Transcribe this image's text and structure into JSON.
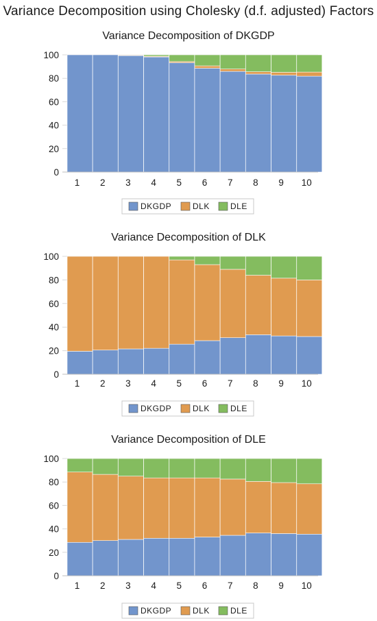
{
  "title": "Variance Decomposition using Cholesky (d.f. adjusted) Factors",
  "colors": {
    "DKGDP": "#7295cc",
    "DLK": "#e09b50",
    "DLE": "#84bc5f",
    "grid": "#d9d9d9",
    "axis": "#bfbfbf"
  },
  "chart_data": [
    {
      "type": "bar",
      "stacked": true,
      "title": "Variance Decomposition of DKGDP",
      "categories": [
        "1",
        "2",
        "3",
        "4",
        "5",
        "6",
        "7",
        "8",
        "9",
        "10"
      ],
      "ylim": [
        0,
        100
      ],
      "yticks": [
        0,
        20,
        40,
        60,
        80,
        100
      ],
      "grid": true,
      "legend_position": "bottom",
      "series": [
        {
          "name": "DKGDP",
          "values": [
            100,
            100,
            99.3,
            98.2,
            93.3,
            88.6,
            85.9,
            83.6,
            82.6,
            81.8
          ]
        },
        {
          "name": "DLK",
          "values": [
            0,
            0,
            0.5,
            0.6,
            1.0,
            2.0,
            2.0,
            2.0,
            2.5,
            3.5
          ]
        },
        {
          "name": "DLE",
          "values": [
            0,
            0,
            0.2,
            1.2,
            5.7,
            9.4,
            12.1,
            14.4,
            14.9,
            14.7
          ]
        }
      ]
    },
    {
      "type": "bar",
      "stacked": true,
      "title": "Variance Decomposition of DLK",
      "categories": [
        "1",
        "2",
        "3",
        "4",
        "5",
        "6",
        "7",
        "8",
        "9",
        "10"
      ],
      "ylim": [
        0,
        100
      ],
      "yticks": [
        0,
        20,
        40,
        60,
        80,
        100
      ],
      "grid": true,
      "legend_position": "bottom",
      "series": [
        {
          "name": "DKGDP",
          "values": [
            19.5,
            20.5,
            21.5,
            22.0,
            25.5,
            28.5,
            31.0,
            33.5,
            32.5,
            32.0
          ]
        },
        {
          "name": "DLK",
          "values": [
            80.5,
            79.5,
            78.5,
            78.0,
            71.5,
            64.5,
            58.0,
            50.5,
            49.0,
            48.0
          ]
        },
        {
          "name": "DLE",
          "values": [
            0,
            0,
            0,
            0,
            3.0,
            7.0,
            11.0,
            16.0,
            18.5,
            20.0
          ]
        }
      ]
    },
    {
      "type": "bar",
      "stacked": true,
      "title": "Variance Decomposition of DLE",
      "categories": [
        "1",
        "2",
        "3",
        "4",
        "5",
        "6",
        "7",
        "8",
        "9",
        "10"
      ],
      "ylim": [
        0,
        100
      ],
      "yticks": [
        0,
        20,
        40,
        60,
        80,
        100
      ],
      "grid": true,
      "legend_position": "bottom",
      "series": [
        {
          "name": "DKGDP",
          "values": [
            28.5,
            30.0,
            31.0,
            32.0,
            32.0,
            33.0,
            34.5,
            36.5,
            36.0,
            35.5
          ]
        },
        {
          "name": "DLK",
          "values": [
            60.0,
            56.5,
            54.0,
            51.5,
            51.5,
            50.5,
            48.0,
            44.0,
            43.5,
            43.0
          ]
        },
        {
          "name": "DLE",
          "values": [
            11.5,
            13.5,
            15.0,
            16.5,
            16.5,
            16.5,
            17.5,
            19.5,
            20.5,
            21.5
          ]
        }
      ]
    }
  ]
}
